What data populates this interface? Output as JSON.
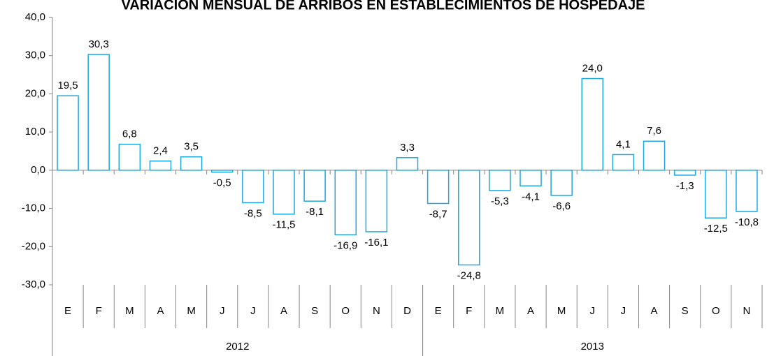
{
  "chart_data": {
    "type": "bar",
    "title": "VARIACIÓN MENSUAL DE ARRIBOS EN ESTABLECIMIENTOS DE HOSPEDAJE",
    "category_groups": [
      {
        "label": "2012",
        "categories": [
          "E",
          "F",
          "M",
          "A",
          "M",
          "J",
          "J",
          "A",
          "S",
          "O",
          "N",
          "D"
        ]
      },
      {
        "label": "2013",
        "categories": [
          "E",
          "F",
          "M",
          "A",
          "M",
          "J",
          "J",
          "A",
          "S",
          "O",
          "N"
        ]
      }
    ],
    "values": [
      19.5,
      30.3,
      6.8,
      2.4,
      3.5,
      -0.5,
      -8.5,
      -11.5,
      -8.1,
      -16.9,
      -16.1,
      3.3,
      -8.7,
      -24.8,
      -5.3,
      -4.1,
      -6.6,
      24.0,
      4.1,
      7.6,
      -1.3,
      -12.5,
      -10.8
    ],
    "value_labels": [
      "19,5",
      "30,3",
      "6,8",
      "2,4",
      "3,5",
      "-0,5",
      "-8,5",
      "-11,5",
      "-8,1",
      "-16,9",
      "-16,1",
      "3,3",
      "-8,7",
      "-24,8",
      "-5,3",
      "-4,1",
      "-6,6",
      "24,0",
      "4,1",
      "7,6",
      "-1,3",
      "-12,5",
      "-10,8"
    ],
    "color": "#1ea7e0",
    "ylim": [
      -30,
      40
    ],
    "yticks": [
      {
        "value": -30,
        "label": "-30,0"
      },
      {
        "value": -20,
        "label": "-20,0"
      },
      {
        "value": -10,
        "label": "-10,0"
      },
      {
        "value": 0,
        "label": "0,0"
      },
      {
        "value": 10,
        "label": "10,0"
      },
      {
        "value": 20,
        "label": "20,0"
      },
      {
        "value": 30,
        "label": "30,0"
      },
      {
        "value": 40,
        "label": "40,0"
      }
    ]
  }
}
